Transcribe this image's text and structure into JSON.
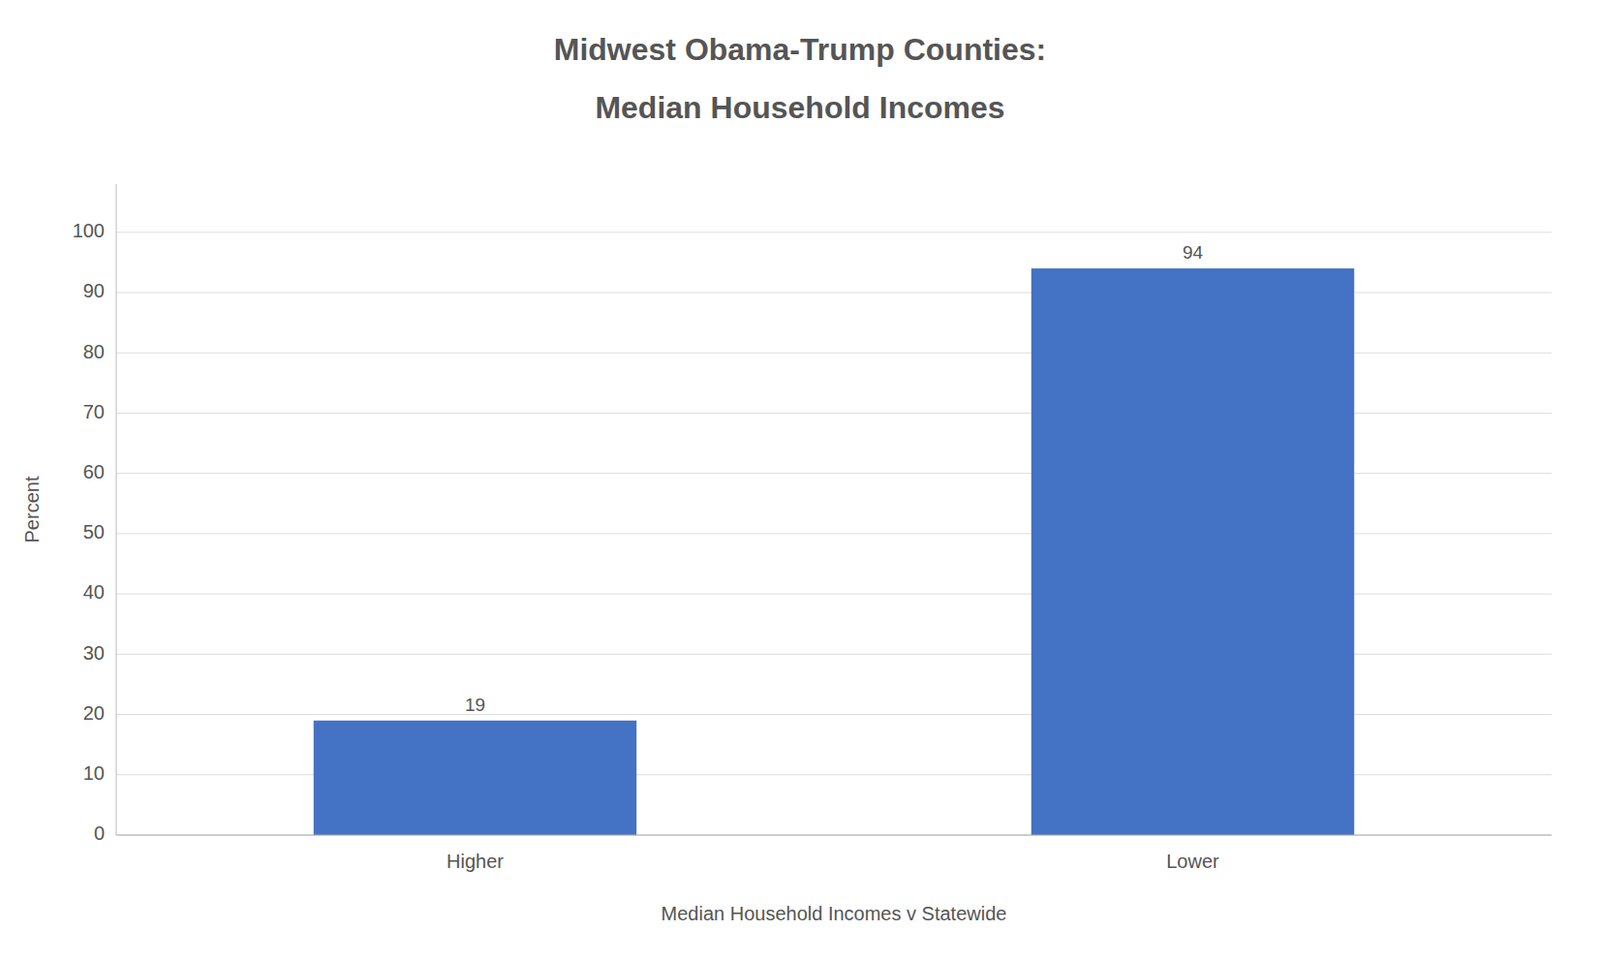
{
  "chart_data": {
    "type": "bar",
    "title": "Midwest Obama-Trump Counties:",
    "subtitle": "Median Household Incomes",
    "x_label": "Median Household Incomes v Statewide",
    "y_label": "Percent",
    "categories": [
      "Higher",
      "Lower"
    ],
    "values": [
      19,
      94
    ],
    "color": "#4472C4",
    "ylim": [
      0,
      108
    ],
    "yticks": [
      0,
      10,
      20,
      30,
      40,
      50,
      60,
      70,
      80,
      90,
      100
    ],
    "grid": true,
    "data_labels": true
  }
}
